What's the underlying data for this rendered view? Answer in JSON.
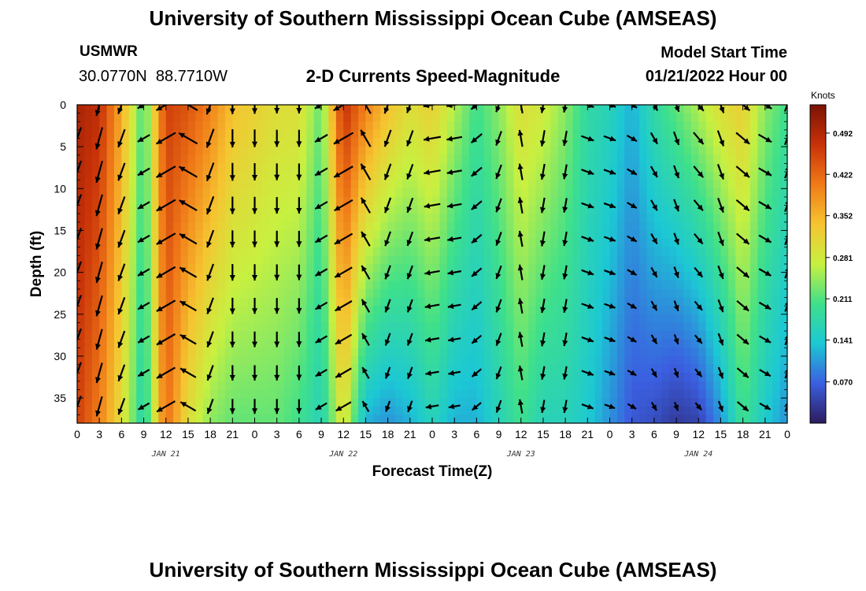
{
  "header": {
    "title": "University of Southern Mississippi Ocean Cube (AMSEAS)",
    "station": "USMWR",
    "coords": "30.0770N  88.7710W",
    "plot_title": "2-D Currents Speed-Magnitude",
    "model_start_label": "Model Start Time",
    "model_start_value": "01/21/2022 Hour 00"
  },
  "footer": {
    "title": "University of Southern Mississippi Ocean Cube (AMSEAS)"
  },
  "colors": {
    "colormap": [
      "#2c1b5e",
      "#3b5fe0",
      "#1cc8d4",
      "#3fe08a",
      "#c8f040",
      "#f6c430",
      "#f07a18",
      "#c83208",
      "#7a1204"
    ]
  },
  "chart_data": {
    "type": "heatmap",
    "title": "2-D Currents Speed-Magnitude",
    "xlabel": "Forecast Time(Z)",
    "ylabel": "Depth (ft)",
    "x_tick_labels": [
      "0",
      "3",
      "6",
      "9",
      "12",
      "15",
      "18",
      "21",
      "0",
      "3",
      "6",
      "9",
      "12",
      "15",
      "18",
      "21",
      "0",
      "3",
      "6",
      "9",
      "12",
      "15",
      "18",
      "21",
      "0",
      "3",
      "6",
      "9",
      "12",
      "15",
      "18",
      "21",
      "0"
    ],
    "day_labels": [
      "JAN 21",
      "JAN 22",
      "JAN 23",
      "JAN 24"
    ],
    "day_label_ticks": [
      4,
      12,
      20,
      28
    ],
    "y_ticks": [
      0,
      5,
      10,
      15,
      20,
      25,
      30,
      35
    ],
    "ylim": [
      0,
      38
    ],
    "xlim_hours": [
      0,
      96
    ],
    "colorbar": {
      "unit": "Knots",
      "range": [
        0,
        0.54
      ],
      "tick_values": [
        0.07,
        0.141,
        0.211,
        0.281,
        0.352,
        0.422,
        0.492
      ],
      "tick_labels": [
        "0.070",
        "0.141",
        "0.211",
        "0.281",
        "0.352",
        "0.422",
        "0.492"
      ]
    },
    "arrow_depths_ft": [
      0,
      4,
      8,
      12,
      16,
      20,
      24,
      28,
      32,
      36
    ],
    "column_profiles": [
      {
        "hour": 0,
        "surface": 0.5,
        "bottom": 0.46,
        "dir_deg": 200
      },
      {
        "hour": 3,
        "surface": 0.48,
        "bottom": 0.4,
        "dir_deg": 195
      },
      {
        "hour": 6,
        "surface": 0.36,
        "bottom": 0.3,
        "dir_deg": 200
      },
      {
        "hour": 9,
        "surface": 0.2,
        "bottom": 0.16,
        "dir_deg": 240
      },
      {
        "hour": 12,
        "surface": 0.46,
        "bottom": 0.42,
        "dir_deg": 240
      },
      {
        "hour": 15,
        "surface": 0.44,
        "bottom": 0.3,
        "dir_deg": 300
      },
      {
        "hour": 18,
        "surface": 0.4,
        "bottom": 0.24,
        "dir_deg": 200
      },
      {
        "hour": 21,
        "surface": 0.34,
        "bottom": 0.22,
        "dir_deg": 180
      },
      {
        "hour": 24,
        "surface": 0.32,
        "bottom": 0.22,
        "dir_deg": 180
      },
      {
        "hour": 27,
        "surface": 0.3,
        "bottom": 0.22,
        "dir_deg": 180
      },
      {
        "hour": 30,
        "surface": 0.3,
        "bottom": 0.2,
        "dir_deg": 180
      },
      {
        "hour": 33,
        "surface": 0.22,
        "bottom": 0.16,
        "dir_deg": 240
      },
      {
        "hour": 36,
        "surface": 0.48,
        "bottom": 0.3,
        "dir_deg": 240
      },
      {
        "hour": 39,
        "surface": 0.4,
        "bottom": 0.12,
        "dir_deg": 330
      },
      {
        "hour": 42,
        "surface": 0.34,
        "bottom": 0.1,
        "dir_deg": 200
      },
      {
        "hour": 45,
        "surface": 0.3,
        "bottom": 0.12,
        "dir_deg": 200
      },
      {
        "hour": 48,
        "surface": 0.32,
        "bottom": 0.16,
        "dir_deg": 260
      },
      {
        "hour": 51,
        "surface": 0.26,
        "bottom": 0.12,
        "dir_deg": 260
      },
      {
        "hour": 54,
        "surface": 0.2,
        "bottom": 0.12,
        "dir_deg": 230
      },
      {
        "hour": 57,
        "surface": 0.24,
        "bottom": 0.16,
        "dir_deg": 200
      },
      {
        "hour": 60,
        "surface": 0.3,
        "bottom": 0.2,
        "dir_deg": 350
      },
      {
        "hour": 63,
        "surface": 0.28,
        "bottom": 0.16,
        "dir_deg": 190
      },
      {
        "hour": 66,
        "surface": 0.24,
        "bottom": 0.16,
        "dir_deg": 190
      },
      {
        "hour": 69,
        "surface": 0.18,
        "bottom": 0.14,
        "dir_deg": 110
      },
      {
        "hour": 72,
        "surface": 0.16,
        "bottom": 0.1,
        "dir_deg": 110
      },
      {
        "hour": 75,
        "surface": 0.12,
        "bottom": 0.06,
        "dir_deg": 120
      },
      {
        "hour": 78,
        "surface": 0.18,
        "bottom": 0.05,
        "dir_deg": 150
      },
      {
        "hour": 81,
        "surface": 0.22,
        "bottom": 0.03,
        "dir_deg": 160
      },
      {
        "hour": 84,
        "surface": 0.26,
        "bottom": 0.04,
        "dir_deg": 140
      },
      {
        "hour": 87,
        "surface": 0.3,
        "bottom": 0.1,
        "dir_deg": 160
      },
      {
        "hour": 90,
        "surface": 0.32,
        "bottom": 0.2,
        "dir_deg": 130
      },
      {
        "hour": 93,
        "surface": 0.24,
        "bottom": 0.14,
        "dir_deg": 120
      },
      {
        "hour": 96,
        "surface": 0.2,
        "bottom": 0.1,
        "dir_deg": 20
      }
    ]
  }
}
